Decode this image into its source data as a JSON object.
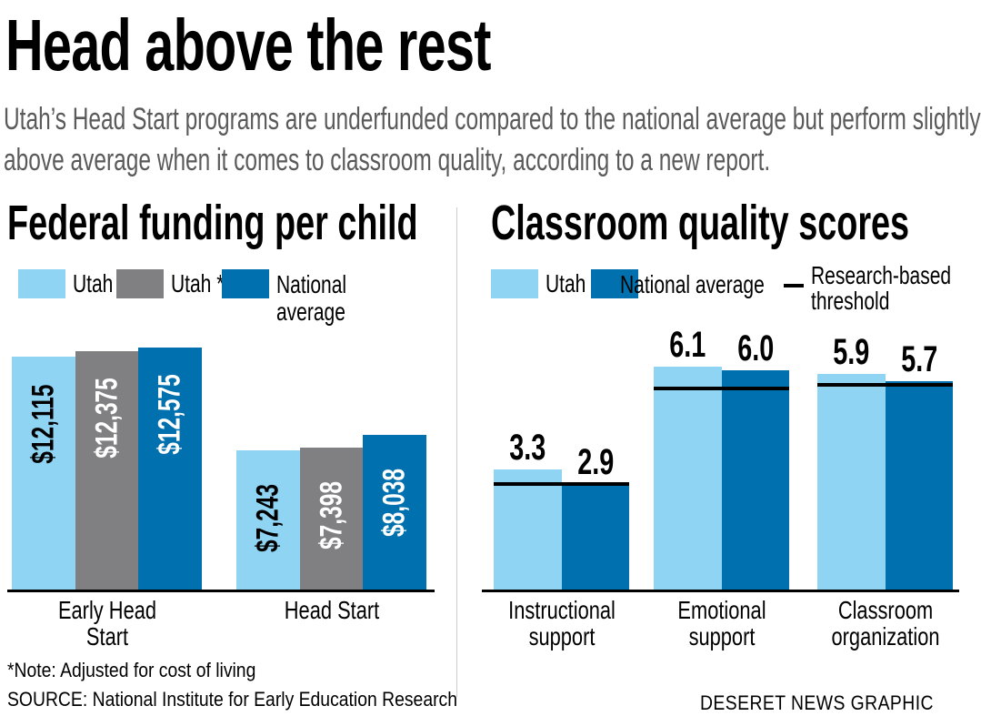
{
  "title": "Head above the rest",
  "subtitle": [
    "Utah’s Head Start programs are underfunded compared to the national average but perform slightly",
    "above average when it comes to classroom quality, according to a new report."
  ],
  "colors": {
    "utah": "#8fd4f3",
    "utah_adjusted": "#808083",
    "national": "#0070ae",
    "threshold": "#000000"
  },
  "chart_data": [
    {
      "type": "bar",
      "title": "Federal funding per child",
      "categories": [
        "Early Head Start",
        "Head Start"
      ],
      "legend": [
        "Utah",
        "Utah *",
        "National average"
      ],
      "series": [
        {
          "name": "Utah",
          "values": [
            12115,
            7243
          ],
          "labels": [
            "$12,115",
            "$7,243"
          ]
        },
        {
          "name": "Utah *",
          "values": [
            12375,
            7398
          ],
          "labels": [
            "$12,375",
            "$7,398"
          ]
        },
        {
          "name": "National average",
          "values": [
            12575,
            8038
          ],
          "labels": [
            "$12,575",
            "$8,038"
          ]
        }
      ]
    },
    {
      "type": "bar",
      "title": "Classroom quality scores",
      "categories": [
        "Instructional support",
        "Emotional support",
        "Classroom organization"
      ],
      "legend": [
        "Utah",
        "National average",
        "Research-based threshold"
      ],
      "series": [
        {
          "name": "Utah",
          "values": [
            3.3,
            6.1,
            5.9
          ],
          "labels": [
            "3.3",
            "6.1",
            "5.9"
          ]
        },
        {
          "name": "National average",
          "values": [
            2.9,
            6.0,
            5.7
          ],
          "labels": [
            "2.9",
            "6.0",
            "5.7"
          ]
        }
      ],
      "threshold": {
        "name": "Research-based threshold",
        "values": [
          2.9,
          5.5,
          5.6
        ]
      }
    }
  ],
  "left_categories_display": [
    [
      "Early Head",
      "Start"
    ],
    [
      "Head Start"
    ]
  ],
  "left_legend_display": [
    "Utah",
    "Utah *",
    "National",
    "average"
  ],
  "right_categories_display": [
    [
      "Instructional",
      "support"
    ],
    [
      "Emotional",
      "support"
    ],
    [
      "Classroom",
      "organization"
    ]
  ],
  "right_legend_display": [
    "Utah",
    "National average",
    "Research-based",
    "threshold"
  ],
  "note": "*Note: Adjusted for cost of living",
  "source": "SOURCE: National Institute for Early Education Research",
  "credit": "DESERET NEWS GRAPHIC"
}
